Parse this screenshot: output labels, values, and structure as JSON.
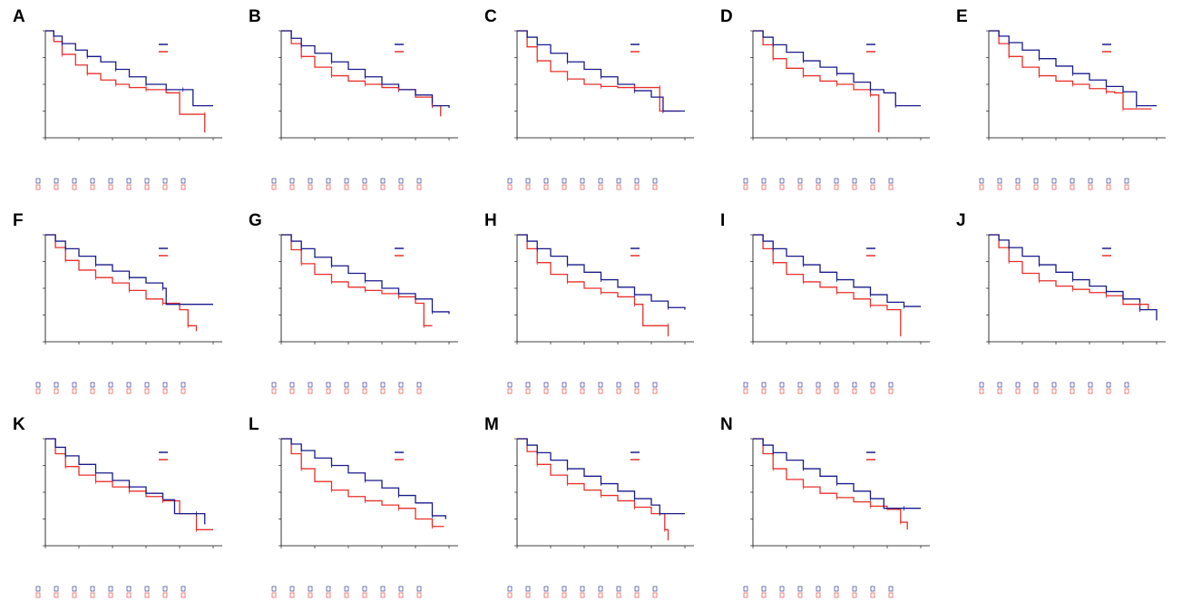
{
  "colors": {
    "high": "#1a1a8c",
    "low": "#e8302b",
    "axis": "#000000"
  },
  "panels": [
    {
      "letter": "A",
      "high": [
        [
          0,
          1
        ],
        [
          0.05,
          0.95
        ],
        [
          0.1,
          0.88
        ],
        [
          0.18,
          0.82
        ],
        [
          0.25,
          0.76
        ],
        [
          0.33,
          0.71
        ],
        [
          0.42,
          0.64
        ],
        [
          0.5,
          0.57
        ],
        [
          0.6,
          0.5
        ],
        [
          0.72,
          0.45
        ],
        [
          0.82,
          0.45
        ],
        [
          0.88,
          0.3
        ],
        [
          1.0,
          0.3
        ]
      ],
      "low": [
        [
          0,
          1
        ],
        [
          0.05,
          0.9
        ],
        [
          0.1,
          0.78
        ],
        [
          0.18,
          0.68
        ],
        [
          0.25,
          0.6
        ],
        [
          0.33,
          0.54
        ],
        [
          0.42,
          0.5
        ],
        [
          0.5,
          0.47
        ],
        [
          0.6,
          0.45
        ],
        [
          0.72,
          0.42
        ],
        [
          0.8,
          0.42
        ],
        [
          0.8,
          0.22
        ],
        [
          0.95,
          0.22
        ],
        [
          0.95,
          0.05
        ]
      ]
    },
    {
      "letter": "B",
      "high": [
        [
          0,
          1
        ],
        [
          0.06,
          0.93
        ],
        [
          0.12,
          0.86
        ],
        [
          0.2,
          0.79
        ],
        [
          0.3,
          0.71
        ],
        [
          0.4,
          0.64
        ],
        [
          0.5,
          0.57
        ],
        [
          0.6,
          0.5
        ],
        [
          0.7,
          0.45
        ],
        [
          0.8,
          0.4
        ],
        [
          0.9,
          0.3
        ],
        [
          1.0,
          0.28
        ]
      ],
      "low": [
        [
          0,
          1
        ],
        [
          0.06,
          0.88
        ],
        [
          0.12,
          0.76
        ],
        [
          0.2,
          0.66
        ],
        [
          0.3,
          0.58
        ],
        [
          0.4,
          0.53
        ],
        [
          0.5,
          0.5
        ],
        [
          0.6,
          0.47
        ],
        [
          0.7,
          0.45
        ],
        [
          0.8,
          0.38
        ],
        [
          0.9,
          0.3
        ],
        [
          0.95,
          0.2
        ]
      ]
    },
    {
      "letter": "C",
      "high": [
        [
          0,
          1
        ],
        [
          0.06,
          0.94
        ],
        [
          0.12,
          0.87
        ],
        [
          0.2,
          0.79
        ],
        [
          0.3,
          0.71
        ],
        [
          0.4,
          0.64
        ],
        [
          0.5,
          0.57
        ],
        [
          0.6,
          0.5
        ],
        [
          0.7,
          0.44
        ],
        [
          0.8,
          0.38
        ],
        [
          0.87,
          0.25
        ],
        [
          1.0,
          0.25
        ]
      ],
      "low": [
        [
          0,
          1
        ],
        [
          0.06,
          0.85
        ],
        [
          0.12,
          0.72
        ],
        [
          0.2,
          0.62
        ],
        [
          0.3,
          0.55
        ],
        [
          0.4,
          0.5
        ],
        [
          0.5,
          0.48
        ],
        [
          0.6,
          0.47
        ],
        [
          0.7,
          0.47
        ],
        [
          0.8,
          0.47
        ],
        [
          0.85,
          0.47
        ],
        [
          0.85,
          0.25
        ],
        [
          0.97,
          0.25
        ]
      ]
    },
    {
      "letter": "D",
      "high": [
        [
          0,
          1
        ],
        [
          0.06,
          0.94
        ],
        [
          0.12,
          0.87
        ],
        [
          0.2,
          0.8
        ],
        [
          0.3,
          0.72
        ],
        [
          0.4,
          0.66
        ],
        [
          0.5,
          0.6
        ],
        [
          0.6,
          0.52
        ],
        [
          0.7,
          0.45
        ],
        [
          0.78,
          0.42
        ],
        [
          0.85,
          0.3
        ],
        [
          1.0,
          0.3
        ]
      ],
      "low": [
        [
          0,
          1
        ],
        [
          0.06,
          0.87
        ],
        [
          0.12,
          0.74
        ],
        [
          0.2,
          0.65
        ],
        [
          0.3,
          0.58
        ],
        [
          0.4,
          0.53
        ],
        [
          0.5,
          0.5
        ],
        [
          0.6,
          0.45
        ],
        [
          0.7,
          0.4
        ],
        [
          0.75,
          0.4
        ],
        [
          0.75,
          0.05
        ]
      ]
    },
    {
      "letter": "E",
      "high": [
        [
          0,
          1
        ],
        [
          0.06,
          0.95
        ],
        [
          0.12,
          0.89
        ],
        [
          0.2,
          0.82
        ],
        [
          0.3,
          0.74
        ],
        [
          0.4,
          0.67
        ],
        [
          0.5,
          0.6
        ],
        [
          0.6,
          0.54
        ],
        [
          0.7,
          0.48
        ],
        [
          0.8,
          0.43
        ],
        [
          0.88,
          0.3
        ],
        [
          1.0,
          0.3
        ]
      ],
      "low": [
        [
          0,
          1
        ],
        [
          0.06,
          0.88
        ],
        [
          0.12,
          0.76
        ],
        [
          0.2,
          0.66
        ],
        [
          0.3,
          0.58
        ],
        [
          0.4,
          0.53
        ],
        [
          0.5,
          0.5
        ],
        [
          0.6,
          0.46
        ],
        [
          0.7,
          0.43
        ],
        [
          0.75,
          0.42
        ],
        [
          0.8,
          0.27
        ],
        [
          0.97,
          0.27
        ]
      ]
    },
    {
      "letter": "F",
      "high": [
        [
          0,
          1
        ],
        [
          0.06,
          0.94
        ],
        [
          0.12,
          0.87
        ],
        [
          0.2,
          0.8
        ],
        [
          0.3,
          0.72
        ],
        [
          0.4,
          0.66
        ],
        [
          0.5,
          0.6
        ],
        [
          0.6,
          0.55
        ],
        [
          0.7,
          0.5
        ],
        [
          0.72,
          0.35
        ],
        [
          1.0,
          0.35
        ]
      ],
      "low": [
        [
          0,
          1
        ],
        [
          0.06,
          0.88
        ],
        [
          0.12,
          0.76
        ],
        [
          0.2,
          0.67
        ],
        [
          0.3,
          0.6
        ],
        [
          0.4,
          0.55
        ],
        [
          0.5,
          0.48
        ],
        [
          0.6,
          0.4
        ],
        [
          0.7,
          0.36
        ],
        [
          0.8,
          0.3
        ],
        [
          0.85,
          0.15
        ],
        [
          0.9,
          0.1
        ]
      ]
    },
    {
      "letter": "G",
      "high": [
        [
          0,
          1
        ],
        [
          0.06,
          0.94
        ],
        [
          0.12,
          0.87
        ],
        [
          0.2,
          0.79
        ],
        [
          0.3,
          0.71
        ],
        [
          0.4,
          0.64
        ],
        [
          0.5,
          0.57
        ],
        [
          0.6,
          0.5
        ],
        [
          0.7,
          0.45
        ],
        [
          0.8,
          0.4
        ],
        [
          0.9,
          0.28
        ],
        [
          1.0,
          0.26
        ]
      ],
      "low": [
        [
          0,
          1
        ],
        [
          0.06,
          0.86
        ],
        [
          0.12,
          0.73
        ],
        [
          0.2,
          0.63
        ],
        [
          0.3,
          0.56
        ],
        [
          0.4,
          0.51
        ],
        [
          0.5,
          0.48
        ],
        [
          0.6,
          0.45
        ],
        [
          0.7,
          0.42
        ],
        [
          0.8,
          0.36
        ],
        [
          0.85,
          0.15
        ],
        [
          0.9,
          0.15
        ]
      ]
    },
    {
      "letter": "H",
      "high": [
        [
          0,
          1
        ],
        [
          0.06,
          0.94
        ],
        [
          0.12,
          0.87
        ],
        [
          0.2,
          0.8
        ],
        [
          0.3,
          0.72
        ],
        [
          0.4,
          0.65
        ],
        [
          0.5,
          0.58
        ],
        [
          0.6,
          0.51
        ],
        [
          0.7,
          0.44
        ],
        [
          0.8,
          0.38
        ],
        [
          0.9,
          0.32
        ],
        [
          1.0,
          0.3
        ]
      ],
      "low": [
        [
          0,
          1
        ],
        [
          0.06,
          0.87
        ],
        [
          0.12,
          0.74
        ],
        [
          0.2,
          0.63
        ],
        [
          0.3,
          0.56
        ],
        [
          0.4,
          0.5
        ],
        [
          0.5,
          0.46
        ],
        [
          0.6,
          0.42
        ],
        [
          0.7,
          0.35
        ],
        [
          0.75,
          0.15
        ],
        [
          0.9,
          0.15
        ],
        [
          0.9,
          0.05
        ]
      ]
    },
    {
      "letter": "I",
      "high": [
        [
          0,
          1
        ],
        [
          0.06,
          0.94
        ],
        [
          0.12,
          0.87
        ],
        [
          0.2,
          0.8
        ],
        [
          0.3,
          0.72
        ],
        [
          0.4,
          0.65
        ],
        [
          0.5,
          0.58
        ],
        [
          0.6,
          0.51
        ],
        [
          0.7,
          0.44
        ],
        [
          0.8,
          0.37
        ],
        [
          0.9,
          0.33
        ],
        [
          1.0,
          0.33
        ]
      ],
      "low": [
        [
          0,
          1
        ],
        [
          0.06,
          0.87
        ],
        [
          0.12,
          0.74
        ],
        [
          0.2,
          0.63
        ],
        [
          0.3,
          0.56
        ],
        [
          0.4,
          0.51
        ],
        [
          0.5,
          0.46
        ],
        [
          0.6,
          0.4
        ],
        [
          0.7,
          0.34
        ],
        [
          0.8,
          0.3
        ],
        [
          0.88,
          0.25
        ],
        [
          0.88,
          0.05
        ]
      ]
    },
    {
      "letter": "J",
      "high": [
        [
          0,
          1
        ],
        [
          0.06,
          0.95
        ],
        [
          0.12,
          0.88
        ],
        [
          0.2,
          0.8
        ],
        [
          0.3,
          0.72
        ],
        [
          0.4,
          0.65
        ],
        [
          0.5,
          0.58
        ],
        [
          0.6,
          0.52
        ],
        [
          0.7,
          0.47
        ],
        [
          0.8,
          0.4
        ],
        [
          0.9,
          0.3
        ],
        [
          1.0,
          0.2
        ]
      ],
      "low": [
        [
          0,
          1
        ],
        [
          0.06,
          0.88
        ],
        [
          0.12,
          0.75
        ],
        [
          0.2,
          0.64
        ],
        [
          0.3,
          0.57
        ],
        [
          0.4,
          0.52
        ],
        [
          0.5,
          0.49
        ],
        [
          0.6,
          0.46
        ],
        [
          0.7,
          0.43
        ],
        [
          0.8,
          0.35
        ],
        [
          0.9,
          0.35
        ],
        [
          0.95,
          0.3
        ]
      ]
    },
    {
      "letter": "K",
      "high": [
        [
          0,
          1
        ],
        [
          0.06,
          0.92
        ],
        [
          0.12,
          0.84
        ],
        [
          0.2,
          0.76
        ],
        [
          0.3,
          0.68
        ],
        [
          0.4,
          0.61
        ],
        [
          0.5,
          0.55
        ],
        [
          0.6,
          0.49
        ],
        [
          0.7,
          0.43
        ],
        [
          0.77,
          0.3
        ],
        [
          0.9,
          0.3
        ],
        [
          0.95,
          0.2
        ]
      ],
      "low": [
        [
          0,
          1
        ],
        [
          0.06,
          0.86
        ],
        [
          0.12,
          0.74
        ],
        [
          0.2,
          0.66
        ],
        [
          0.3,
          0.6
        ],
        [
          0.4,
          0.55
        ],
        [
          0.5,
          0.51
        ],
        [
          0.6,
          0.46
        ],
        [
          0.7,
          0.42
        ],
        [
          0.8,
          0.3
        ],
        [
          0.9,
          0.15
        ],
        [
          1.0,
          0.15
        ]
      ]
    },
    {
      "letter": "L",
      "high": [
        [
          0,
          1
        ],
        [
          0.06,
          0.95
        ],
        [
          0.12,
          0.89
        ],
        [
          0.2,
          0.82
        ],
        [
          0.3,
          0.75
        ],
        [
          0.4,
          0.68
        ],
        [
          0.5,
          0.61
        ],
        [
          0.6,
          0.54
        ],
        [
          0.7,
          0.47
        ],
        [
          0.8,
          0.4
        ],
        [
          0.9,
          0.28
        ],
        [
          0.98,
          0.25
        ]
      ],
      "low": [
        [
          0,
          1
        ],
        [
          0.06,
          0.86
        ],
        [
          0.12,
          0.72
        ],
        [
          0.2,
          0.6
        ],
        [
          0.3,
          0.52
        ],
        [
          0.4,
          0.46
        ],
        [
          0.5,
          0.42
        ],
        [
          0.6,
          0.38
        ],
        [
          0.7,
          0.35
        ],
        [
          0.8,
          0.25
        ],
        [
          0.9,
          0.18
        ],
        [
          0.97,
          0.18
        ]
      ]
    },
    {
      "letter": "M",
      "high": [
        [
          0,
          1
        ],
        [
          0.06,
          0.94
        ],
        [
          0.12,
          0.87
        ],
        [
          0.2,
          0.8
        ],
        [
          0.3,
          0.72
        ],
        [
          0.4,
          0.65
        ],
        [
          0.5,
          0.58
        ],
        [
          0.6,
          0.51
        ],
        [
          0.7,
          0.44
        ],
        [
          0.8,
          0.38
        ],
        [
          0.85,
          0.3
        ],
        [
          1.0,
          0.3
        ]
      ],
      "low": [
        [
          0,
          1
        ],
        [
          0.06,
          0.88
        ],
        [
          0.12,
          0.76
        ],
        [
          0.2,
          0.66
        ],
        [
          0.3,
          0.58
        ],
        [
          0.4,
          0.52
        ],
        [
          0.5,
          0.47
        ],
        [
          0.6,
          0.42
        ],
        [
          0.7,
          0.36
        ],
        [
          0.8,
          0.3
        ],
        [
          0.88,
          0.15
        ],
        [
          0.9,
          0.05
        ]
      ]
    },
    {
      "letter": "N",
      "high": [
        [
          0,
          1
        ],
        [
          0.06,
          0.94
        ],
        [
          0.12,
          0.87
        ],
        [
          0.2,
          0.8
        ],
        [
          0.3,
          0.72
        ],
        [
          0.4,
          0.65
        ],
        [
          0.5,
          0.58
        ],
        [
          0.6,
          0.51
        ],
        [
          0.7,
          0.44
        ],
        [
          0.78,
          0.35
        ],
        [
          0.9,
          0.35
        ],
        [
          1.0,
          0.35
        ]
      ],
      "low": [
        [
          0,
          1
        ],
        [
          0.06,
          0.86
        ],
        [
          0.12,
          0.72
        ],
        [
          0.2,
          0.62
        ],
        [
          0.3,
          0.55
        ],
        [
          0.4,
          0.49
        ],
        [
          0.5,
          0.45
        ],
        [
          0.6,
          0.41
        ],
        [
          0.7,
          0.37
        ],
        [
          0.8,
          0.34
        ],
        [
          0.88,
          0.22
        ],
        [
          0.92,
          0.15
        ]
      ]
    }
  ]
}
